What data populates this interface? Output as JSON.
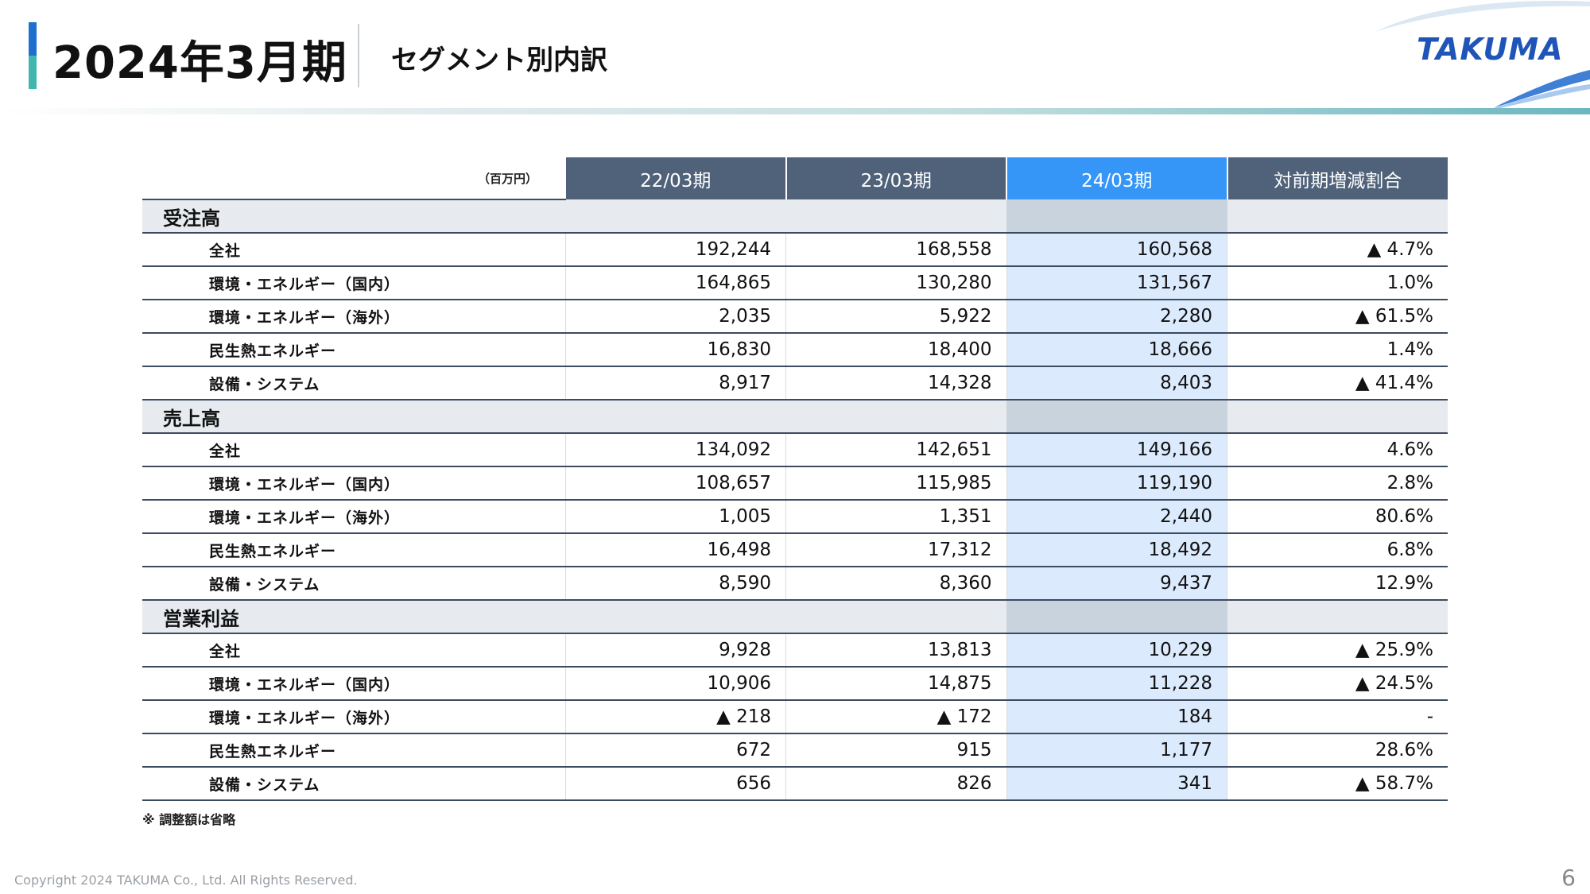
{
  "header": {
    "title": "2024年3月期",
    "subtitle": "セグメント別内訳",
    "logo_text": "TAKUMA"
  },
  "table": {
    "unit": "（百万円）",
    "columns": [
      "22/03期",
      "23/03期",
      "24/03期",
      "対前期増減割合"
    ],
    "highlight_column": "24/03期",
    "sections": [
      {
        "name": "受注高",
        "rows": [
          {
            "label": "全社",
            "values": [
              "192,244",
              "168,558",
              "160,568",
              "▲ 4.7%"
            ]
          },
          {
            "label": "環境・エネルギー（国内）",
            "values": [
              "164,865",
              "130,280",
              "131,567",
              "1.0%"
            ]
          },
          {
            "label": "環境・エネルギー（海外）",
            "values": [
              "2,035",
              "5,922",
              "2,280",
              "▲ 61.5%"
            ]
          },
          {
            "label": "民生熱エネルギー",
            "values": [
              "16,830",
              "18,400",
              "18,666",
              "1.4%"
            ]
          },
          {
            "label": "設備・システム",
            "values": [
              "8,917",
              "14,328",
              "8,403",
              "▲ 41.4%"
            ]
          }
        ]
      },
      {
        "name": "売上高",
        "rows": [
          {
            "label": "全社",
            "values": [
              "134,092",
              "142,651",
              "149,166",
              "4.6%"
            ]
          },
          {
            "label": "環境・エネルギー（国内）",
            "values": [
              "108,657",
              "115,985",
              "119,190",
              "2.8%"
            ]
          },
          {
            "label": "環境・エネルギー（海外）",
            "values": [
              "1,005",
              "1,351",
              "2,440",
              "80.6%"
            ]
          },
          {
            "label": "民生熱エネルギー",
            "values": [
              "16,498",
              "17,312",
              "18,492",
              "6.8%"
            ]
          },
          {
            "label": "設備・システム",
            "values": [
              "8,590",
              "8,360",
              "9,437",
              "12.9%"
            ]
          }
        ]
      },
      {
        "name": "営業利益",
        "rows": [
          {
            "label": "全社",
            "values": [
              "9,928",
              "13,813",
              "10,229",
              "▲ 25.9%"
            ]
          },
          {
            "label": "環境・エネルギー（国内）",
            "values": [
              "10,906",
              "14,875",
              "11,228",
              "▲ 24.5%"
            ]
          },
          {
            "label": "環境・エネルギー（海外）",
            "values": [
              "▲ 218",
              "▲ 172",
              "184",
              "-"
            ]
          },
          {
            "label": "民生熱エネルギー",
            "values": [
              "672",
              "915",
              "1,177",
              "28.6%"
            ]
          },
          {
            "label": "設備・システム",
            "values": [
              "656",
              "826",
              "341",
              "▲ 58.7%"
            ]
          }
        ]
      }
    ]
  },
  "note": "※ 調整額は省略",
  "footer": {
    "copyright": "Copyright  2024 TAKUMA Co., Ltd.  All Rights Reserved.",
    "page_number": "6"
  },
  "colors": {
    "header_column": "#4f6279",
    "current_column": "#3596f7",
    "current_column_cell": "#dceafd",
    "section_row": "#e7ebef",
    "brand": "#1f55b8"
  }
}
